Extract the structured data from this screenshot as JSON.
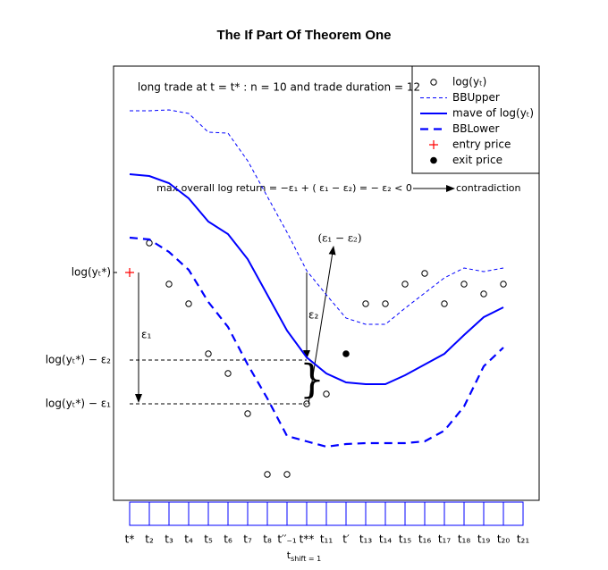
{
  "chart_data": {
    "type": "line",
    "title": "The If Part Of Theorem One",
    "categories": [
      "t*",
      "t₂",
      "t₃",
      "t₄",
      "t₅",
      "t₆",
      "t₇",
      "t₈",
      "t′′₋₁",
      "t**",
      "t₁₁",
      "t′",
      "t₁₃",
      "t₁₄",
      "t₁₅",
      "t₁₆",
      "t₁₇",
      "t₁₈",
      "t₁₉",
      "t₂₀",
      "t₂₁"
    ],
    "xlabel_base": "t",
    "xlabel_sub": "shift = 1",
    "ylim": [
      0,
      48.6
    ],
    "yticks": [
      {
        "value": 25.5,
        "label": "log(yₜ*)"
      },
      {
        "value": 15.7,
        "label": "log(yₜ*) − ε₂"
      },
      {
        "value": 10.8,
        "label": "log(yₜ*) − ε₁"
      }
    ],
    "annotations": {
      "top": "long trade at  t = t* : n = 10 and trade duration = 12",
      "max_return": "max overall log return = −ε₁ + ( ε₁ − ε₂) = − ε₂ < 0",
      "contradiction": "contradiction",
      "eps1": "ε₁",
      "eps2": "ε₂",
      "diff": "(ε₁ − ε₂)"
    },
    "series": [
      {
        "name": "log(yₜ)",
        "style": "circle",
        "color": "#000000",
        "values": [
          null,
          28.8,
          24.2,
          22.0,
          16.4,
          14.2,
          9.7,
          2.9,
          2.9,
          10.8,
          11.9,
          null,
          22.0,
          22.0,
          24.2,
          25.4,
          22.0,
          24.2,
          23.1,
          24.2,
          null
        ]
      },
      {
        "name": "BBUpper",
        "style": "dashed-thin",
        "color": "#0000ff",
        "values": [
          43.6,
          43.6,
          43.7,
          43.3,
          41.2,
          41.1,
          38.0,
          34.0,
          30.0,
          25.7,
          23.0,
          20.4,
          19.7,
          19.7,
          21.5,
          23.2,
          24.9,
          26.0,
          25.6,
          26.0,
          null
        ]
      },
      {
        "name": "mave of log(yₜ)",
        "style": "solid",
        "color": "#0000ff",
        "values": [
          36.5,
          36.3,
          35.5,
          33.8,
          31.2,
          29.8,
          27.0,
          23.0,
          19.0,
          16.0,
          14.2,
          13.2,
          13.0,
          13.0,
          14.0,
          15.2,
          16.4,
          18.5,
          20.5,
          21.6,
          null
        ]
      },
      {
        "name": "BBLower",
        "style": "dashed-thick",
        "color": "#0000ff",
        "values": [
          29.4,
          29.2,
          27.8,
          25.8,
          22.2,
          19.4,
          15.2,
          11.4,
          7.2,
          6.6,
          6.0,
          6.3,
          6.4,
          6.4,
          6.4,
          6.6,
          7.8,
          10.5,
          15.0,
          17.1,
          null
        ]
      },
      {
        "name": "entry price",
        "style": "plus",
        "color": "#ff0000",
        "values": [
          25.5,
          null,
          null,
          null,
          null,
          null,
          null,
          null,
          null,
          null,
          null,
          null,
          null,
          null,
          null,
          null,
          null,
          null,
          null,
          null,
          null
        ]
      },
      {
        "name": "exit price",
        "style": "dot",
        "color": "#000000",
        "values": [
          null,
          null,
          null,
          null,
          null,
          null,
          null,
          null,
          null,
          null,
          null,
          16.4,
          null,
          null,
          null,
          null,
          null,
          null,
          null,
          null,
          null
        ]
      }
    ]
  }
}
